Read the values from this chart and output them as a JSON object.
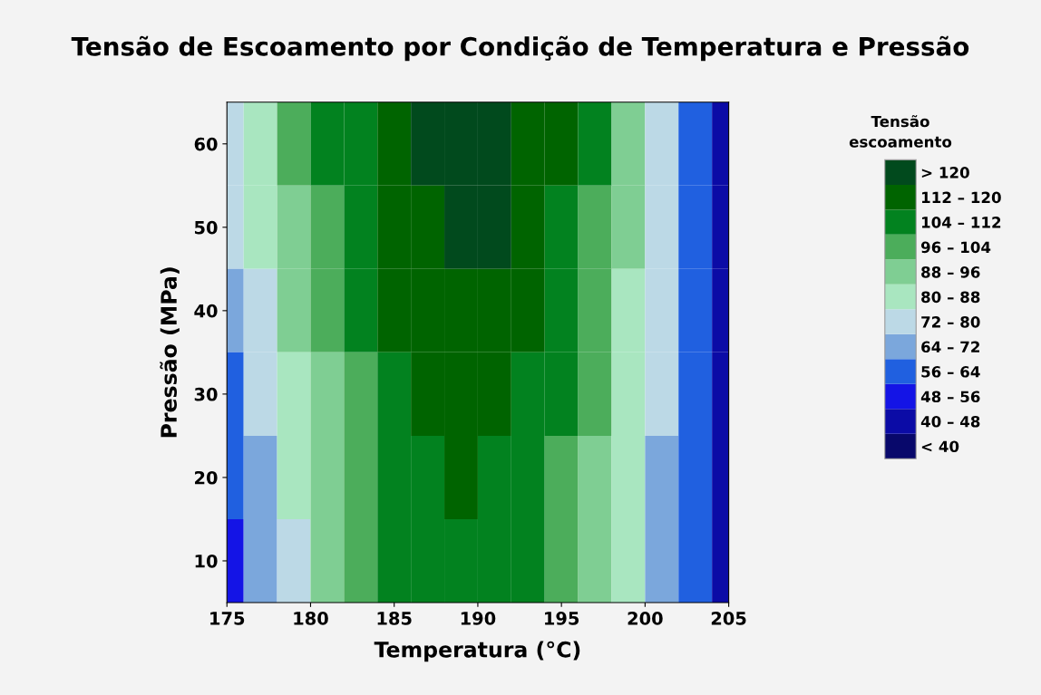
{
  "chart_data": {
    "type": "heatmap",
    "title": "Tensão de Escoamento por Condição de Temperatura e Pressão",
    "xlabel": "Temperatura (°C)",
    "ylabel": "Pressão (MPa)",
    "clabel": "Tensão\nescoamento",
    "x": [
      175,
      177,
      179,
      181,
      183,
      185,
      187,
      189,
      191,
      193,
      195,
      197,
      199,
      201,
      203,
      205
    ],
    "y_categories": [
      "60",
      "50",
      "40",
      "30",
      "20",
      "10"
    ],
    "cells": [
      [
        76,
        86,
        98,
        106,
        111,
        116,
        122,
        124,
        122,
        117,
        113,
        105,
        91,
        77,
        60,
        41
      ],
      [
        72,
        82,
        94,
        102,
        108,
        114,
        119,
        121,
        120,
        115,
        110,
        102,
        89,
        75,
        59,
        42
      ],
      [
        67,
        78,
        90,
        99,
        106,
        112,
        116,
        118,
        117,
        112,
        107,
        99,
        86,
        73,
        59,
        42
      ],
      [
        63,
        74,
        86,
        95,
        103,
        110,
        114,
        115,
        114,
        110,
        105,
        97,
        84,
        72,
        58,
        43
      ],
      [
        58,
        70,
        82,
        92,
        100,
        108,
        111,
        112,
        111,
        108,
        102,
        94,
        82,
        70,
        57,
        43
      ],
      [
        54,
        66,
        79,
        88,
        97,
        106,
        108,
        109,
        108,
        105,
        99,
        91,
        80,
        68,
        57,
        44
      ]
    ],
    "clim": [
      32,
      128
    ],
    "cticks": [
      {
        "value": 36,
        "label": "< 40"
      },
      {
        "value": 44,
        "label": "40 – 48"
      },
      {
        "value": 52,
        "label": "48 – 56"
      },
      {
        "value": 60,
        "label": "56 – 64"
      },
      {
        "value": 68,
        "label": "64 – 72"
      },
      {
        "value": 76,
        "label": "72 – 80"
      },
      {
        "value": 84,
        "label": "80 – 88"
      },
      {
        "value": 92,
        "label": "88 – 96"
      },
      {
        "value": 100,
        "label": "96 – 104"
      },
      {
        "value": 108,
        "label": "104 – 112"
      },
      {
        "value": 116,
        "label": "112 – 120"
      },
      {
        "value": 124,
        "label": "> 120"
      }
    ],
    "colors": [
      "#08086b",
      "#0b0ba6",
      "#1414e6",
      "#2060e0",
      "#7ba7dc",
      "#bcd9e6",
      "#a9e6c0",
      "#7fce93",
      "#4cad5b",
      "#02821f",
      "#006400",
      "#014a1d"
    ],
    "xlim": [
      175,
      205
    ],
    "xticks": [
      175,
      180,
      185,
      190,
      195,
      200,
      205
    ],
    "grid": false
  }
}
